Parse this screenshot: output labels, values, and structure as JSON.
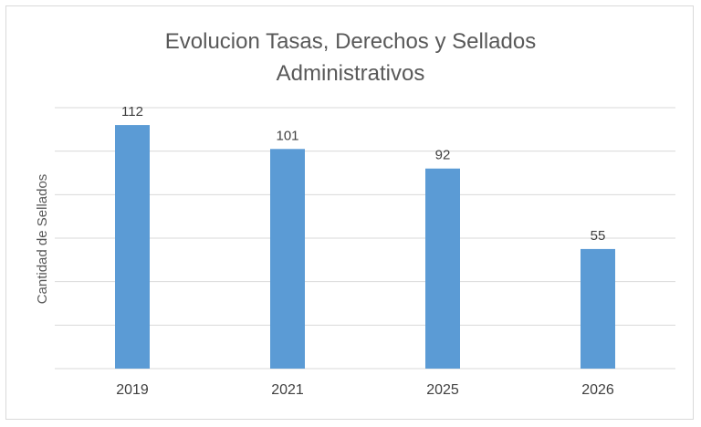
{
  "chart_data": {
    "type": "bar",
    "title_lines": [
      "Evolucion Tasas, Derechos y Sellados",
      "Administrativos"
    ],
    "xlabel": "",
    "ylabel": "Cantidad de Sellados",
    "categories": [
      "2019",
      "2021",
      "2025",
      "2026"
    ],
    "values": [
      112,
      101,
      92,
      55
    ],
    "ylim": [
      0,
      120
    ],
    "y_gridline_step": 20,
    "y_tick_labels_shown": false,
    "grid": true,
    "legend": "none",
    "bar_color": "#5b9bd5",
    "grid_color": "#d9d9d9"
  }
}
